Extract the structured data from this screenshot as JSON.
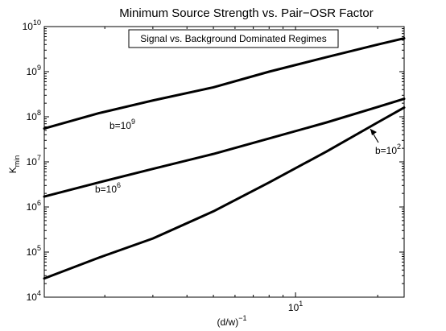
{
  "chart_data": {
    "type": "line",
    "title": "Minimum Source Strength vs. Pair−OSR Factor",
    "xlabel": {
      "base": "(d/w)",
      "exponent": "−1"
    },
    "ylabel": {
      "base": "K",
      "subscript": "min"
    },
    "xscale": "log",
    "yscale": "log",
    "xlim": [
      1.2,
      25
    ],
    "ylim": [
      10000,
      10000000000
    ],
    "x_ticks": [
      {
        "value": 10,
        "base": "10",
        "exponent": "1"
      }
    ],
    "y_ticks": [
      {
        "value": 10000,
        "base": "10",
        "exponent": "4"
      },
      {
        "value": 100000,
        "base": "10",
        "exponent": "5"
      },
      {
        "value": 1000000,
        "base": "10",
        "exponent": "6"
      },
      {
        "value": 10000000,
        "base": "10",
        "exponent": "7"
      },
      {
        "value": 100000000,
        "base": "10",
        "exponent": "8"
      },
      {
        "value": 1000000000,
        "base": "10",
        "exponent": "9"
      },
      {
        "value": 10000000000,
        "base": "10",
        "exponent": "10"
      }
    ],
    "grid": false,
    "legend_box_text": "Signal vs. Background Dominated Regimes",
    "legend_box_position": "top-center",
    "series": [
      {
        "label_base": "b=10",
        "label_exponent": "9",
        "color": "#000000",
        "x": [
          1.2,
          1.9,
          3.0,
          5.0,
          8.0,
          13.0,
          20.0,
          25.0
        ],
        "y": [
          55000000,
          120000000,
          230000000,
          450000000,
          1000000000,
          2100000000,
          4000000000,
          5500000000
        ]
      },
      {
        "label_base": "b=10",
        "label_exponent": "6",
        "color": "#000000",
        "x": [
          1.2,
          1.9,
          3.0,
          5.0,
          8.0,
          13.0,
          20.0,
          25.0
        ],
        "y": [
          1700000,
          3500000,
          7000000,
          15000000,
          33000000,
          75000000,
          165000000,
          250000000
        ]
      },
      {
        "label_base": "b=10",
        "label_exponent": "2",
        "color": "#000000",
        "x": [
          1.2,
          1.9,
          3.0,
          5.0,
          8.0,
          13.0,
          20.0,
          25.0
        ],
        "y": [
          26000,
          75000,
          200000,
          800000,
          3500000,
          17000000,
          75000000,
          160000000
        ]
      }
    ]
  }
}
